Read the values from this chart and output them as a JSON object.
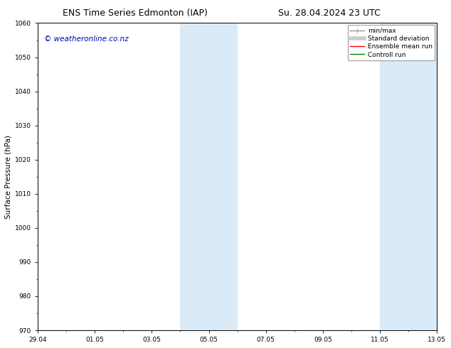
{
  "title_left": "ENS Time Series Edmonton (IAP)",
  "title_right": "Su. 28.04.2024 23 UTC",
  "ylabel": "Surface Pressure (hPa)",
  "watermark": "© weatheronline.co.nz",
  "watermark_color": "#0000bb",
  "xlim_left": 0,
  "xlim_right": 14,
  "ylim_bottom": 970,
  "ylim_top": 1060,
  "yticks": [
    970,
    980,
    990,
    1000,
    1010,
    1020,
    1030,
    1040,
    1050,
    1060
  ],
  "xtick_labels": [
    "29.04",
    "01.05",
    "03.05",
    "05.05",
    "07.05",
    "09.05",
    "11.05",
    "13.05"
  ],
  "xtick_positions": [
    0,
    2,
    4,
    6,
    8,
    10,
    12,
    14
  ],
  "background_color": "#ffffff",
  "plot_bg_color": "#ffffff",
  "shaded_regions": [
    {
      "xmin": 5.0,
      "xmax": 7.0,
      "color": "#daeaf7"
    },
    {
      "xmin": 12.0,
      "xmax": 14.0,
      "color": "#daeaf7"
    }
  ],
  "legend_entries": [
    {
      "label": "min/max",
      "color": "#999999",
      "lw": 1.0
    },
    {
      "label": "Standard deviation",
      "color": "#cccccc",
      "lw": 4.0
    },
    {
      "label": "Ensemble mean run",
      "color": "#ff0000",
      "lw": 1.0
    },
    {
      "label": "Controll run",
      "color": "#008800",
      "lw": 1.0
    }
  ],
  "title_fontsize": 9,
  "tick_fontsize": 6.5,
  "ylabel_fontsize": 7.5,
  "watermark_fontsize": 7.5,
  "legend_fontsize": 6.5
}
